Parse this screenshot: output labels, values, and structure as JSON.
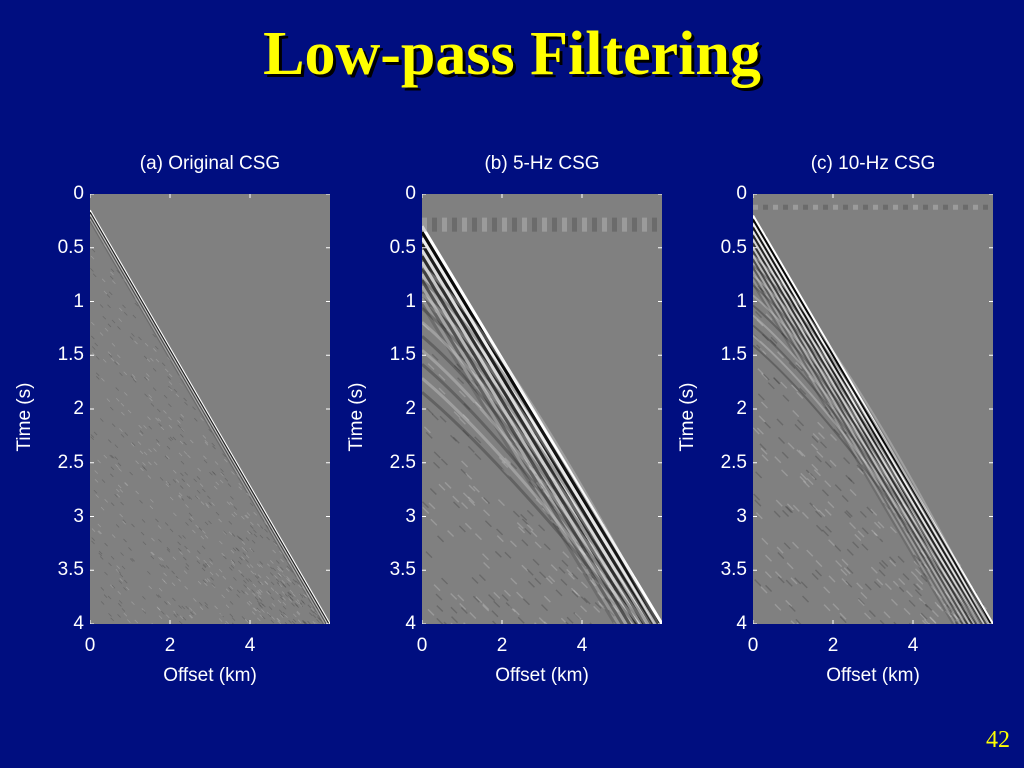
{
  "slide": {
    "title": "Low-pass Filtering",
    "page_number": "42",
    "colors": {
      "background": "#000E80",
      "title": "#FFFF00",
      "text": "#FFFFFF",
      "plot_background": "#808080"
    }
  },
  "chart_data": [
    {
      "type": "heatmap",
      "title": "(a) Original CSG",
      "xlabel": "Offset (km)",
      "ylabel": "Time (s)",
      "xlim": [
        0,
        6
      ],
      "ylim": [
        4,
        0
      ],
      "x_ticks": [
        0,
        2,
        4
      ],
      "x_tick_labels": [
        "0",
        "2",
        "4"
      ],
      "y_ticks": [
        0,
        0.5,
        1,
        1.5,
        2,
        2.5,
        3,
        3.5,
        4
      ],
      "y_tick_labels": [
        "0",
        "0.5",
        "1",
        "1.5",
        "2",
        "2.5",
        "3",
        "3.5",
        "4"
      ],
      "colormap": "gray",
      "first_arrival": {
        "offset_km": [
          0,
          6
        ],
        "time_s": [
          0.15,
          4.0
        ]
      }
    },
    {
      "type": "heatmap",
      "title": "(b) 5-Hz CSG",
      "xlabel": "Offset (km)",
      "ylabel": "Time (s)",
      "xlim": [
        0,
        6
      ],
      "ylim": [
        4,
        0
      ],
      "x_ticks": [
        0,
        2,
        4
      ],
      "x_tick_labels": [
        "0",
        "2",
        "4"
      ],
      "y_ticks": [
        0,
        0.5,
        1,
        1.5,
        2,
        2.5,
        3,
        3.5,
        4
      ],
      "y_tick_labels": [
        "0",
        "0.5",
        "1",
        "1.5",
        "2",
        "2.5",
        "3",
        "3.5",
        "4"
      ],
      "colormap": "gray",
      "first_arrival": {
        "offset_km": [
          0,
          6
        ],
        "time_s": [
          0.3,
          4.0
        ]
      }
    },
    {
      "type": "heatmap",
      "title": "(c) 10-Hz CSG",
      "xlabel": "Offset (km)",
      "ylabel": "Time (s)",
      "xlim": [
        0,
        6
      ],
      "ylim": [
        4,
        0
      ],
      "x_ticks": [
        0,
        2,
        4
      ],
      "x_tick_labels": [
        "0",
        "2",
        "4"
      ],
      "y_ticks": [
        0,
        0.5,
        1,
        1.5,
        2,
        2.5,
        3,
        3.5,
        4
      ],
      "y_tick_labels": [
        "0",
        "0.5",
        "1",
        "1.5",
        "2",
        "2.5",
        "3",
        "3.5",
        "4"
      ],
      "colormap": "gray",
      "first_arrival": {
        "offset_km": [
          0,
          6
        ],
        "time_s": [
          0.2,
          4.0
        ]
      }
    }
  ]
}
